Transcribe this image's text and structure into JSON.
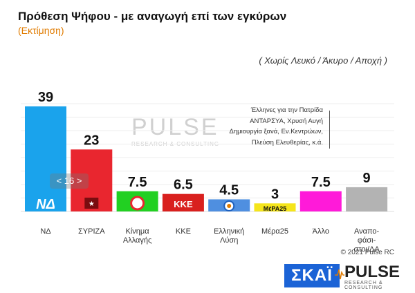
{
  "title": "Πρόθεση Ψήφου - με αναγωγή επί των εγκύρων",
  "subtitle": "(Εκτίμηση)",
  "note": "( Χωρίς Λευκό / Άκυρο / Αποχή )",
  "other_note_lines": [
    "Έλληνες για την Πατρίδα",
    "ΑΝΤΑΡΣΥΑ, Χρυσή Αυγή",
    "Δημιουργία ξανά, Εν.Κεντρώων,",
    "Πλεύση Ελευθερίας, κ.ά."
  ],
  "page_indicator": "< 16 >",
  "copyright": "© 2021 Pulse RC",
  "watermark": {
    "brand": "PULSE",
    "tagline": "RESEARCH & CONSULTING"
  },
  "logos": {
    "skai": "ΣΚΑΪ",
    "pulse": "PULSE",
    "pulse_tagline": "RESEARCH & CONSULTING",
    "party_marks": [
      "ΝΔ",
      "ΚΚΕ",
      "ΜέΡΑ25"
    ]
  },
  "chart_data": {
    "type": "bar",
    "categories": [
      "ΝΔ",
      "ΣΥΡΙΖΑ",
      "Κίνημα Αλλαγής",
      "ΚΚΕ",
      "Ελληνική Λύση",
      "Μέρα25",
      "Άλλο",
      "Αναπο- φάσι- στοι/ΔΑ"
    ],
    "category_lines": [
      [
        "ΝΔ"
      ],
      [
        "ΣΥΡΙΖΑ"
      ],
      [
        "Κίνημα",
        "Αλλαγής"
      ],
      [
        "ΚΚΕ"
      ],
      [
        "Ελληνική",
        "Λύση"
      ],
      [
        "Μέρα25"
      ],
      [
        "Άλλο"
      ],
      [
        "Αναπο-",
        "φάσι-",
        "στοι/ΔΑ"
      ]
    ],
    "values": [
      39,
      23,
      7.5,
      6.5,
      4.5,
      3,
      7.5,
      9
    ],
    "value_labels": [
      "39",
      "23",
      "7.5",
      "6.5",
      "4.5",
      "3",
      "7.5",
      "9"
    ],
    "colors": [
      "#1aa3ec",
      "#e9262f",
      "#22d022",
      "#d9201e",
      "#4f8fe0",
      "#f5e51b",
      "#ff1ad9",
      "#b3b3b3"
    ],
    "ylim": [
      0,
      40
    ],
    "grid": true
  }
}
